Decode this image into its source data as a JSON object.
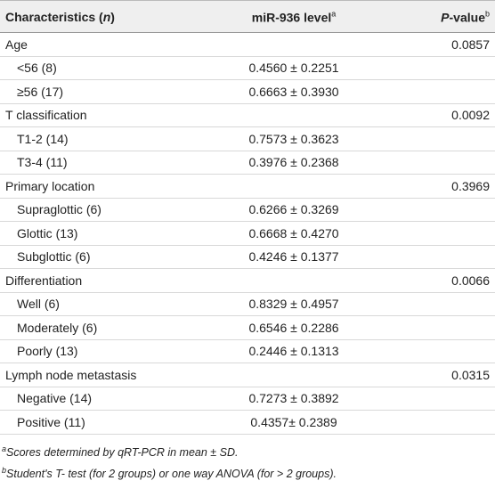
{
  "header": {
    "characteristics": [
      "Characteristics (",
      "n",
      ")"
    ],
    "level": [
      "miR-936 level",
      "a"
    ],
    "p_value": [
      "P",
      "-value",
      "b"
    ]
  },
  "table": {
    "groups": [
      {
        "label": "Age",
        "p_value": "0.0857",
        "rows": [
          {
            "label": "<56 (8)",
            "value": "0.4560 ± 0.2251"
          },
          {
            "label": "≥56 (17)",
            "value": "0.6663 ± 0.3930"
          }
        ]
      },
      {
        "label": "T classification",
        "p_value": "0.0092",
        "rows": [
          {
            "label": "T1-2 (14)",
            "value": "0.7573 ± 0.3623"
          },
          {
            "label": "T3-4 (11)",
            "value": "0.3976 ± 0.2368"
          }
        ]
      },
      {
        "label": "Primary location",
        "p_value": "0.3969",
        "rows": [
          {
            "label": "Supraglottic (6)",
            "value": "0.6266 ± 0.3269"
          },
          {
            "label": "Glottic (13)",
            "value": "0.6668 ± 0.4270"
          },
          {
            "label": "Subglottic (6)",
            "value": "0.4246 ± 0.1377"
          }
        ]
      },
      {
        "label": "Differentiation",
        "p_value": "0.0066",
        "rows": [
          {
            "label": "Well (6)",
            "value": "0.8329 ± 0.4957"
          },
          {
            "label": "Moderately (6)",
            "value": "0.6546 ± 0.2286"
          },
          {
            "label": "Poorly (13)",
            "value": "0.2446 ± 0.1313"
          }
        ]
      },
      {
        "label": "Lymph node metastasis",
        "p_value": "0.0315",
        "rows": [
          {
            "label": "Negative (14)",
            "value": "0.7273 ± 0.3892"
          },
          {
            "label": "Positive (11)",
            "value": "0.4357± 0.2389"
          }
        ]
      }
    ]
  },
  "footnotes": [
    {
      "mark": "a",
      "text": "Scores determined by qRT-PCR in mean ± SD."
    },
    {
      "mark": "b",
      "text": "Student's T- test (for 2 groups) or one way ANOVA (for > 2 groups)."
    }
  ]
}
